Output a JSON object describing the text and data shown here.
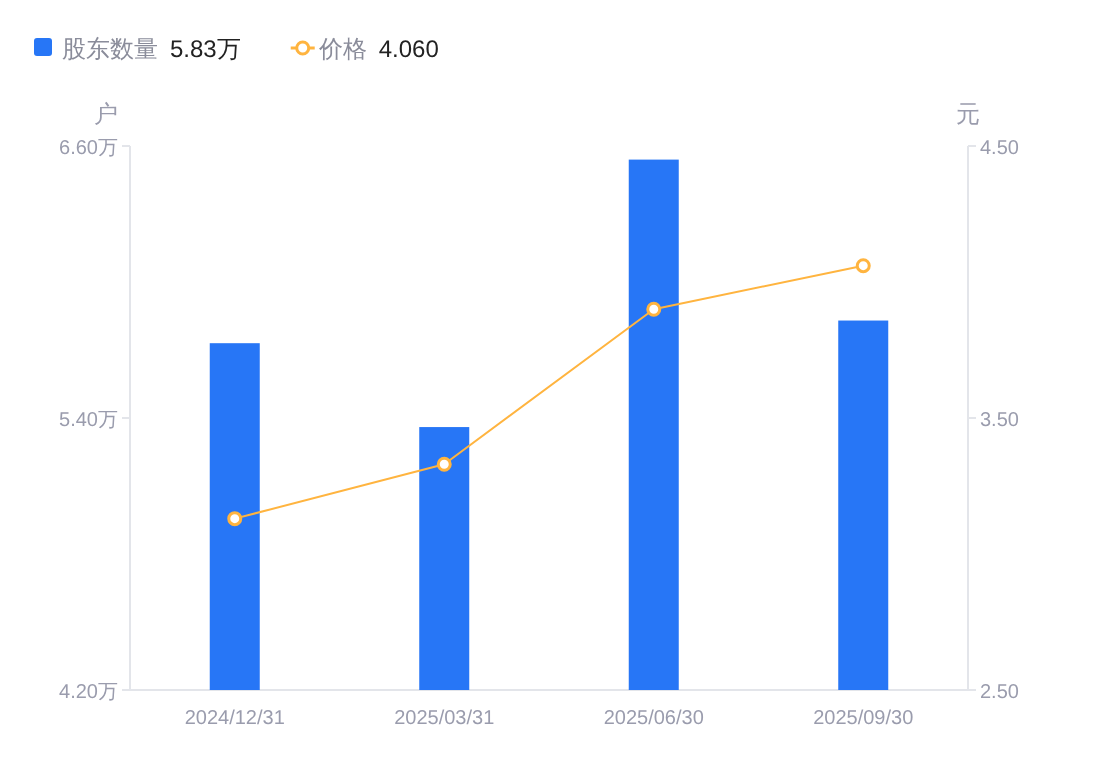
{
  "chart_data": {
    "type": "bar",
    "categories": [
      "2024/12/31",
      "2025/03/31",
      "2025/06/30",
      "2025/09/30"
    ],
    "series": [
      {
        "name": "股东数量",
        "color": "#2776f6",
        "values": [
          5.73,
          5.36,
          6.54,
          5.83
        ]
      },
      {
        "name": "价格",
        "type": "line",
        "axis": "y2",
        "color": "#ffb43f",
        "marker": "circle",
        "values": [
          3.13,
          3.33,
          3.9,
          4.06
        ]
      }
    ],
    "ylabel": "户",
    "y2label": "元",
    "ylim": [
      4.2,
      6.6
    ],
    "yticks": [
      {
        "value": 4.2,
        "label": "4.20万"
      },
      {
        "value": 5.4,
        "label": "5.40万"
      },
      {
        "value": 6.6,
        "label": "6.60万"
      }
    ],
    "y2lim": [
      2.5,
      4.5
    ],
    "y2ticks": [
      {
        "value": 2.5,
        "label": "2.50"
      },
      {
        "value": 3.5,
        "label": "3.50"
      },
      {
        "value": 4.5,
        "label": "4.50"
      }
    ],
    "annotations": [
      "5.83万",
      "4.060"
    ],
    "legend": "top left",
    "grid": false
  }
}
